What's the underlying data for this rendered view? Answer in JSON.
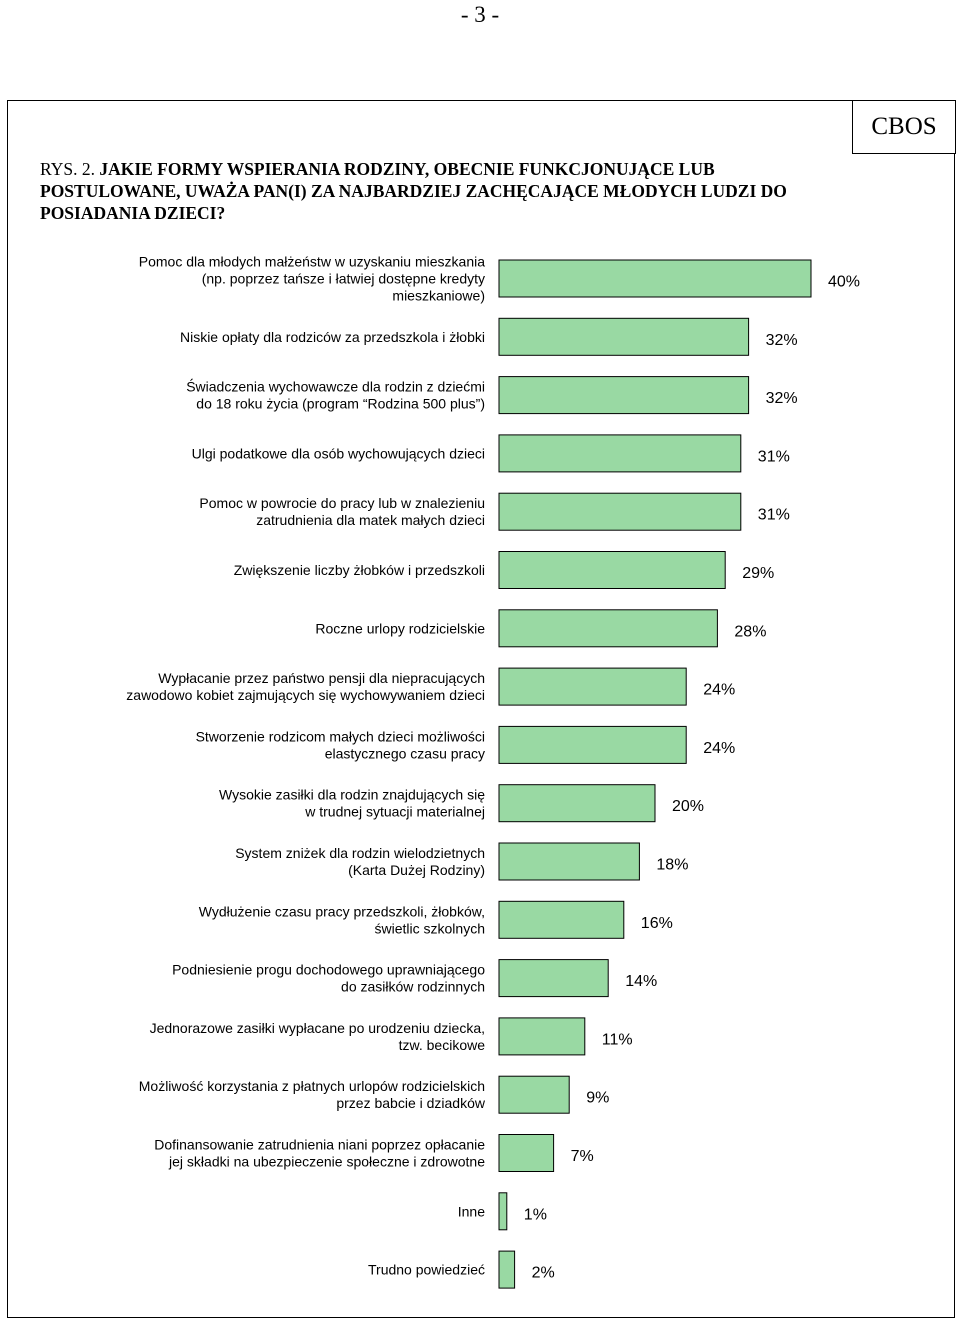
{
  "page": {
    "page_number": "- 3 -",
    "source_badge": "CBOS",
    "figure_prefix": "RYS. 2.",
    "figure_title": "JAKIE FORMY WSPIERANIA RODZINY, OBECNIE FUNKCJONUJĄCE LUB POSTULOWANE, UWAŻA PAN(I) ZA NAJBARDZIEJ ZACHĘCAJĄCE MŁODYCH LUDZI DO POSIADANIA DZIECI?"
  },
  "colors": {
    "bar_fill": "#99d9a3",
    "bar_stroke": "#000000"
  },
  "chart_data": {
    "type": "bar",
    "orientation": "horizontal",
    "unit": "%",
    "xlim": [
      0,
      40
    ],
    "grid": false,
    "categories": [
      [
        "Pomoc dla młodych małżeństw w uzyskaniu mieszkania",
        "(np. poprzez tańsze i łatwiej dostępne kredyty",
        "mieszkaniowe)"
      ],
      [
        "Niskie opłaty dla rodziców za przedszkola i żłobki"
      ],
      [
        "Świadczenia wychowawcze dla rodzin z dziećmi",
        "do 18 roku życia (program “Rodzina 500 plus”)"
      ],
      [
        "Ulgi podatkowe dla osób wychowujących dzieci"
      ],
      [
        "Pomoc w powrocie do pracy lub w znalezieniu",
        "zatrudnienia dla matek małych dzieci"
      ],
      [
        "Zwiększenie liczby żłobków i przedszkoli"
      ],
      [
        "Roczne urlopy rodzicielskie"
      ],
      [
        "Wypłacanie przez państwo pensji dla niepracujących",
        "zawodowo kobiet zajmujących się wychowywaniem dzieci"
      ],
      [
        "Stworzenie rodzicom małych dzieci możliwości",
        "elastycznego czasu pracy"
      ],
      [
        "Wysokie zasiłki dla rodzin znajdujących się",
        "w trudnej sytuacji materialnej"
      ],
      [
        "System zniżek dla rodzin wielodzietnych",
        "(Karta Dużej Rodziny)"
      ],
      [
        "Wydłużenie czasu pracy przedszkoli, żłobków,",
        "świetlic szkolnych"
      ],
      [
        "Podniesienie progu dochodowego uprawniającego",
        "do zasiłków rodzinnych"
      ],
      [
        "Jednorazowe zasiłki wypłacane po urodzeniu dziecka,",
        "tzw. becikowe"
      ],
      [
        "Możliwość korzystania z płatnych urlopów rodzicielskich",
        "przez babcie i dziadków"
      ],
      [
        "Dofinansowanie zatrudnienia niani poprzez opłacanie",
        "jej składki na ubezpieczenie społeczne i zdrowotne"
      ],
      [
        "Inne"
      ],
      [
        "Trudno powiedzieć"
      ]
    ],
    "values": [
      40,
      32,
      32,
      31,
      31,
      29,
      28,
      24,
      24,
      20,
      18,
      16,
      14,
      11,
      9,
      7,
      1,
      2
    ],
    "value_labels": [
      "40%",
      "32%",
      "32%",
      "31%",
      "31%",
      "29%",
      "28%",
      "24%",
      "24%",
      "20%",
      "18%",
      "16%",
      "14%",
      "11%",
      "9%",
      "7%",
      "1%",
      "2%"
    ]
  }
}
